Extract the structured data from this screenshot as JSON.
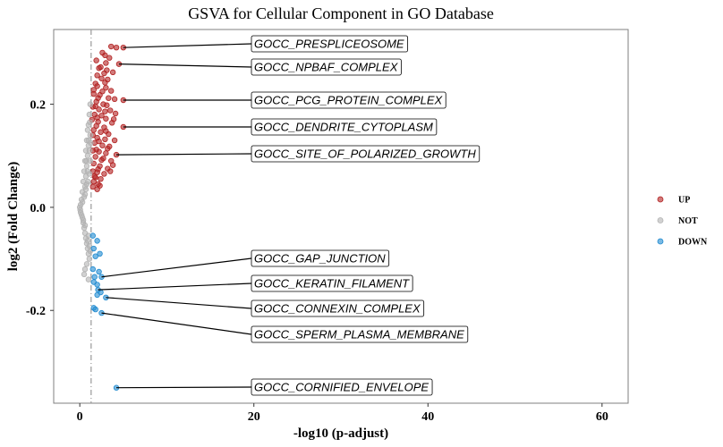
{
  "chart_data": {
    "type": "scatter",
    "title": "GSVA for Cellular Component in GO Database",
    "xlabel": "-log10 (p-adjust)",
    "ylabel": "log2 (Fold Change)",
    "xlim": [
      -3,
      63
    ],
    "ylim": [
      -0.38,
      0.345
    ],
    "x_ticks": [
      0,
      20,
      40,
      60
    ],
    "y_ticks": [
      -0.2,
      0.0,
      0.2
    ],
    "y_tick_labels": [
      "-0.2",
      "0.0",
      "0.2"
    ],
    "threshold_x": 1.3,
    "grid": false,
    "legend_position": "right",
    "colors": {
      "UP": "#b22222",
      "NOT": "#b3b3b3",
      "DOWN": "#1f8ad0",
      "threshold": "#999999"
    },
    "series": [
      {
        "name": "UP",
        "points": [
          [
            4.2,
            0.31
          ],
          [
            5.0,
            0.31
          ],
          [
            3.6,
            0.312
          ],
          [
            3.4,
            0.29
          ],
          [
            3.0,
            0.28
          ],
          [
            2.2,
            0.27
          ],
          [
            4.5,
            0.278
          ],
          [
            2.8,
            0.26
          ],
          [
            3.8,
            0.262
          ],
          [
            2.5,
            0.25
          ],
          [
            3.2,
            0.248
          ],
          [
            1.8,
            0.24
          ],
          [
            2.0,
            0.235
          ],
          [
            3.0,
            0.232
          ],
          [
            2.6,
            0.225
          ],
          [
            3.6,
            0.226
          ],
          [
            1.6,
            0.22
          ],
          [
            2.3,
            0.218
          ],
          [
            3.3,
            0.212
          ],
          [
            4.0,
            0.21
          ],
          [
            5.0,
            0.208
          ],
          [
            1.9,
            0.205
          ],
          [
            2.7,
            0.2
          ],
          [
            3.1,
            0.198
          ],
          [
            1.5,
            0.195
          ],
          [
            2.2,
            0.19
          ],
          [
            3.5,
            0.188
          ],
          [
            4.1,
            0.182
          ],
          [
            1.7,
            0.18
          ],
          [
            2.5,
            0.178
          ],
          [
            3.0,
            0.172
          ],
          [
            1.4,
            0.17
          ],
          [
            2.1,
            0.166
          ],
          [
            3.7,
            0.164
          ],
          [
            5.0,
            0.156
          ],
          [
            2.8,
            0.155
          ],
          [
            1.6,
            0.15
          ],
          [
            2.4,
            0.146
          ],
          [
            3.3,
            0.142
          ],
          [
            1.5,
            0.14
          ],
          [
            2.0,
            0.135
          ],
          [
            2.9,
            0.132
          ],
          [
            4.0,
            0.13
          ],
          [
            1.7,
            0.125
          ],
          [
            2.6,
            0.12
          ],
          [
            3.4,
            0.118
          ],
          [
            1.5,
            0.11
          ],
          [
            2.2,
            0.108
          ],
          [
            3.0,
            0.105
          ],
          [
            4.2,
            0.102
          ],
          [
            1.8,
            0.098
          ],
          [
            2.5,
            0.092
          ],
          [
            3.6,
            0.09
          ],
          [
            1.6,
            0.085
          ],
          [
            2.3,
            0.08
          ],
          [
            3.2,
            0.075
          ],
          [
            1.5,
            0.07
          ],
          [
            2.0,
            0.068
          ],
          [
            2.8,
            0.065
          ],
          [
            1.7,
            0.06
          ],
          [
            2.4,
            0.055
          ],
          [
            1.6,
            0.05
          ],
          [
            2.1,
            0.045
          ],
          [
            1.5,
            0.04
          ],
          [
            2.0,
            0.035
          ],
          [
            2.6,
            0.3
          ],
          [
            2.9,
            0.295
          ],
          [
            1.9,
            0.285
          ],
          [
            2.4,
            0.272
          ],
          [
            3.1,
            0.266
          ],
          [
            2.0,
            0.256
          ],
          [
            2.9,
            0.242
          ],
          [
            1.6,
            0.228
          ],
          [
            2.1,
            0.212
          ],
          [
            1.8,
            0.196
          ],
          [
            2.9,
            0.186
          ],
          [
            2.0,
            0.174
          ],
          [
            3.9,
            0.171
          ],
          [
            1.9,
            0.158
          ],
          [
            3.0,
            0.148
          ],
          [
            2.2,
            0.128
          ],
          [
            3.2,
            0.114
          ],
          [
            1.9,
            0.112
          ],
          [
            2.7,
            0.095
          ],
          [
            3.8,
            0.082
          ],
          [
            2.1,
            0.074
          ],
          [
            3.5,
            0.07
          ],
          [
            1.8,
            0.058
          ],
          [
            2.3,
            0.042
          ]
        ]
      },
      {
        "name": "NOT",
        "points": [
          [
            1.2,
            0.2
          ],
          [
            1.1,
            0.18
          ],
          [
            1.0,
            0.16
          ],
          [
            0.9,
            0.15
          ],
          [
            1.2,
            0.14
          ],
          [
            0.8,
            0.13
          ],
          [
            1.0,
            0.12
          ],
          [
            0.7,
            0.11
          ],
          [
            0.9,
            0.1
          ],
          [
            0.6,
            0.09
          ],
          [
            0.8,
            0.08
          ],
          [
            0.5,
            0.07
          ],
          [
            0.7,
            0.06
          ],
          [
            0.4,
            0.05
          ],
          [
            0.6,
            0.04
          ],
          [
            0.3,
            0.03
          ],
          [
            0.5,
            0.02
          ],
          [
            0.2,
            0.015
          ],
          [
            0.3,
            0.01
          ],
          [
            0.1,
            0.005
          ],
          [
            0.0,
            0.0
          ],
          [
            0.05,
            -0.005
          ],
          [
            0.1,
            -0.01
          ],
          [
            0.2,
            -0.015
          ],
          [
            0.3,
            -0.02
          ],
          [
            0.4,
            -0.03
          ],
          [
            0.5,
            -0.04
          ],
          [
            0.6,
            -0.05
          ],
          [
            0.7,
            -0.06
          ],
          [
            0.8,
            -0.07
          ],
          [
            0.9,
            -0.08
          ],
          [
            1.0,
            -0.09
          ],
          [
            1.1,
            -0.1
          ],
          [
            0.8,
            -0.11
          ],
          [
            0.5,
            -0.13
          ],
          [
            1.0,
            -0.14
          ],
          [
            0.6,
            -0.12
          ],
          [
            1.1,
            0.11
          ],
          [
            1.0,
            0.13
          ],
          [
            0.9,
            0.07
          ],
          [
            0.8,
            0.045
          ],
          [
            0.7,
            0.035
          ],
          [
            0.6,
            0.025
          ],
          [
            0.4,
            -0.025
          ],
          [
            0.6,
            -0.035
          ],
          [
            0.9,
            -0.065
          ],
          [
            1.1,
            -0.075
          ],
          [
            1.2,
            -0.085
          ],
          [
            1.0,
            -0.055
          ],
          [
            1.2,
            0.09
          ],
          [
            1.1,
            0.065
          ],
          [
            1.25,
            0.125
          ],
          [
            1.15,
            0.165
          ],
          [
            0.75,
            0.09
          ],
          [
            0.95,
            0.05
          ]
        ]
      },
      {
        "name": "DOWN",
        "points": [
          [
            1.5,
            -0.055
          ],
          [
            2.0,
            -0.065
          ],
          [
            1.6,
            -0.08
          ],
          [
            2.3,
            -0.09
          ],
          [
            1.8,
            -0.095
          ],
          [
            1.5,
            -0.12
          ],
          [
            2.2,
            -0.125
          ],
          [
            1.7,
            -0.135
          ],
          [
            2.5,
            -0.135
          ],
          [
            1.6,
            -0.145
          ],
          [
            2.0,
            -0.15
          ],
          [
            2.1,
            -0.16
          ],
          [
            2.0,
            -0.17
          ],
          [
            2.4,
            -0.165
          ],
          [
            3.0,
            -0.175
          ],
          [
            1.6,
            -0.195
          ],
          [
            1.8,
            -0.198
          ],
          [
            2.5,
            -0.205
          ],
          [
            4.2,
            -0.35
          ]
        ]
      }
    ],
    "annotations": [
      {
        "label": "GOCC_PRESPLICEOSOME",
        "x": 5.0,
        "y": 0.31
      },
      {
        "label": "GOCC_NPBAF_COMPLEX",
        "x": 4.5,
        "y": 0.278
      },
      {
        "label": "GOCC_PCG_PROTEIN_COMPLEX",
        "x": 5.0,
        "y": 0.208
      },
      {
        "label": "GOCC_DENDRITE_CYTOPLASM",
        "x": 5.0,
        "y": 0.156
      },
      {
        "label": "GOCC_SITE_OF_POLARIZED_GROWTH",
        "x": 4.2,
        "y": 0.102
      },
      {
        "label": "GOCC_GAP_JUNCTION",
        "x": 2.5,
        "y": -0.135
      },
      {
        "label": "GOCC_KERATIN_FILAMENT",
        "x": 2.1,
        "y": -0.16
      },
      {
        "label": "GOCC_CONNEXIN_COMPLEX",
        "x": 3.0,
        "y": -0.175
      },
      {
        "label": "GOCC_SPERM_PLASMA_MEMBRANE",
        "x": 2.5,
        "y": -0.205
      },
      {
        "label": "GOCC_CORNIFIED_ENVELOPE",
        "x": 4.2,
        "y": -0.35
      }
    ]
  }
}
